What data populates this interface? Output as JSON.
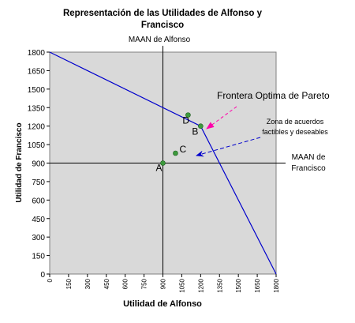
{
  "chart_data": {
    "type": "line",
    "title_line1": "Representación de las Utilidades de Alfonso y",
    "title_line2": "Francisco",
    "xlabel": "Utilidad de Alfonso",
    "ylabel": "Utilidad de Francisco",
    "xlim": [
      0,
      1800
    ],
    "ylim": [
      0,
      1800
    ],
    "x_ticks": [
      0,
      150,
      300,
      450,
      600,
      750,
      900,
      1050,
      1200,
      1350,
      1500,
      1650,
      1800
    ],
    "y_ticks": [
      0,
      150,
      300,
      450,
      600,
      750,
      900,
      1050,
      1200,
      1350,
      1500,
      1650,
      1800
    ],
    "grid": false,
    "plot_background": "#d9d9d9",
    "series": [
      {
        "color": "#0000cc",
        "x": [
          0,
          300,
          1200,
          1800
        ],
        "y": [
          1800,
          1650,
          1200,
          0
        ]
      }
    ],
    "points": [
      {
        "label": "A",
        "x": 900,
        "y": 900,
        "color": "#3d9a3d"
      },
      {
        "label": "B",
        "x": 1200,
        "y": 1200,
        "color": "#3d9a3d"
      },
      {
        "label": "C",
        "x": 1000,
        "y": 980,
        "color": "#3d9a3d"
      },
      {
        "label": "D",
        "x": 1100,
        "y": 1290,
        "color": "#3d9a3d"
      }
    ],
    "reference_lines": {
      "vertical": {
        "x": 900,
        "label": "MAAN de Alfonso"
      },
      "horizontal": {
        "y": 900,
        "label_line1": "MAAN de",
        "label_line2": "Francisco"
      }
    },
    "annotations": {
      "pareto": "Frontera Optima de Pareto",
      "zone_line1": "Zona de acuerdos",
      "zone_line2": "factibles y deseables",
      "pareto_arrow_color": "#ff00aa",
      "zone_arrow_color": "#0000cc"
    }
  }
}
